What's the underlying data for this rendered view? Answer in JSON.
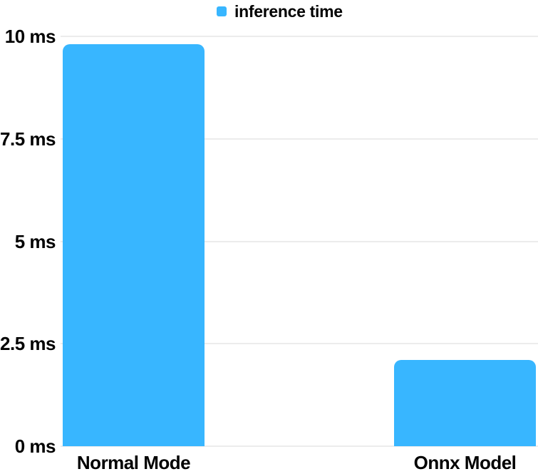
{
  "chart_data": {
    "type": "bar",
    "title": "",
    "xlabel": "",
    "ylabel": "",
    "unit": "ms",
    "legend": {
      "label": "inference time",
      "position": "top-center"
    },
    "categories": [
      "Normal Mode",
      "Onnx Model"
    ],
    "series": [
      {
        "name": "inference time",
        "values": [
          9.8,
          2.1
        ]
      }
    ],
    "ylim": [
      0,
      10
    ],
    "yticks": [
      {
        "value": 10,
        "label": "10 ms"
      },
      {
        "value": 7.5,
        "label": "7.5 ms"
      },
      {
        "value": 5,
        "label": "5 ms"
      },
      {
        "value": 2.5,
        "label": "2.5 ms"
      },
      {
        "value": 0,
        "label": "0 ms"
      }
    ],
    "grid": "horizontal",
    "colors": {
      "bar": "#38B6FF",
      "gridline": "#ECECEC",
      "text": "#000000",
      "background": "#FFFFFF"
    }
  }
}
